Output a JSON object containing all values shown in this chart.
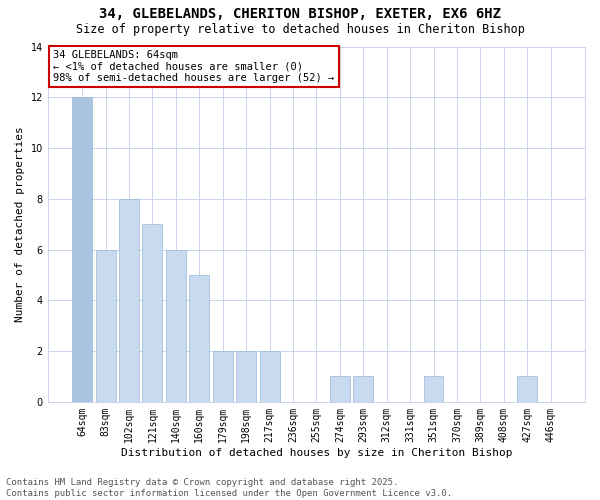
{
  "title": "34, GLEBELANDS, CHERITON BISHOP, EXETER, EX6 6HZ",
  "subtitle": "Size of property relative to detached houses in Cheriton Bishop",
  "xlabel": "Distribution of detached houses by size in Cheriton Bishop",
  "ylabel": "Number of detached properties",
  "categories": [
    "64sqm",
    "83sqm",
    "102sqm",
    "121sqm",
    "140sqm",
    "160sqm",
    "179sqm",
    "198sqm",
    "217sqm",
    "236sqm",
    "255sqm",
    "274sqm",
    "293sqm",
    "312sqm",
    "331sqm",
    "351sqm",
    "370sqm",
    "389sqm",
    "408sqm",
    "427sqm",
    "446sqm"
  ],
  "values": [
    12,
    6,
    8,
    7,
    6,
    5,
    2,
    2,
    2,
    0,
    0,
    1,
    1,
    0,
    0,
    1,
    0,
    0,
    0,
    1,
    0
  ],
  "bar_color_highlight": "#a8c4e0",
  "bar_color_normal": "#c8daf0",
  "highlight_index": 0,
  "ylim": [
    0,
    14
  ],
  "yticks": [
    0,
    2,
    4,
    6,
    8,
    10,
    12,
    14
  ],
  "annotation_text": "34 GLEBELANDS: 64sqm\n← <1% of detached houses are smaller (0)\n98% of semi-detached houses are larger (52) →",
  "annotation_box_color": "#ffffff",
  "annotation_box_edge": "#cc0000",
  "footer": "Contains HM Land Registry data © Crown copyright and database right 2025.\nContains public sector information licensed under the Open Government Licence v3.0.",
  "background_color": "#ffffff",
  "grid_color": "#c8d4e8",
  "title_fontsize": 10,
  "subtitle_fontsize": 8.5,
  "axis_label_fontsize": 8,
  "tick_fontsize": 7,
  "footer_fontsize": 6.5,
  "annotation_fontsize": 7.5
}
